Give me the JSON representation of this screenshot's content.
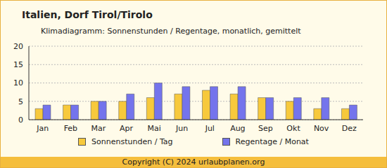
{
  "chart_data": {
    "type": "bar",
    "title": "Italien, Dorf Tirol/Tirolo",
    "subtitle": "Klimadiagramm: Sonnenstunden / Regentage, monatlich, gemittelt",
    "annotations": [
      "Copyright (C) 2024 urlaubplanen.org"
    ],
    "categories": [
      "Jan",
      "Feb",
      "Mar",
      "Apr",
      "Mai",
      "Jun",
      "Jul",
      "Aug",
      "Sep",
      "Okt",
      "Nov",
      "Dez"
    ],
    "series": [
      {
        "name": "Sonnenstunden / Tag",
        "color": "#f7c93c",
        "values": [
          3,
          4,
          5,
          5,
          6,
          7,
          8,
          7,
          6,
          5,
          3,
          3
        ]
      },
      {
        "name": "Regentage / Monat",
        "color": "#7474ec",
        "values": [
          4,
          4,
          5,
          7,
          10,
          9,
          9,
          9,
          6,
          6,
          6,
          4
        ]
      }
    ],
    "ylim": [
      0,
      20
    ],
    "yticks": [
      0,
      5,
      10,
      15,
      20
    ],
    "grid": true,
    "legend": "bottom"
  }
}
